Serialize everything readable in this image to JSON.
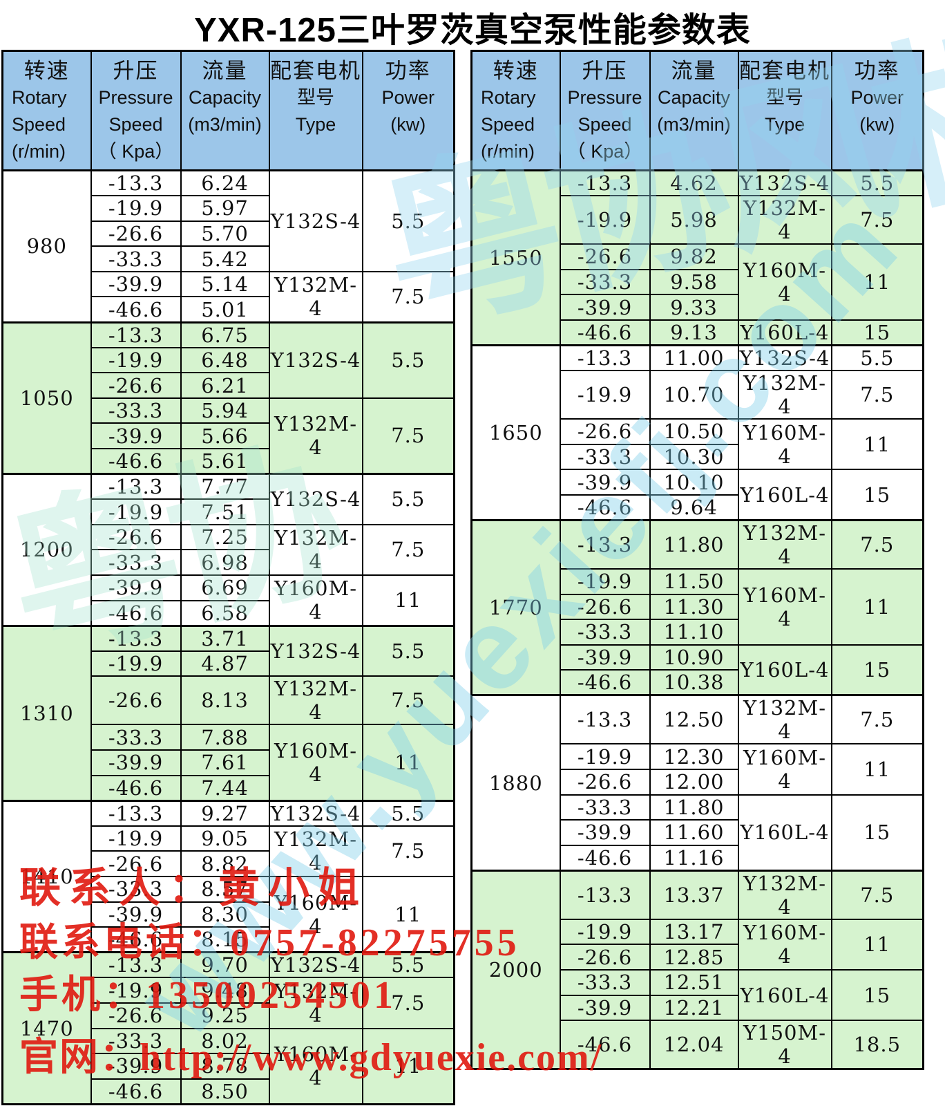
{
  "title": "YXR-125三叶罗茨真空泵性能参数表",
  "colors": {
    "header_blue": "#9cc6e9",
    "row_green": "#d6f3cf",
    "row_white": "#ffffff",
    "contact_red": "#e0180e",
    "watermark_cyan": "#7accE8",
    "border_black": "#000000"
  },
  "columns": [
    {
      "key": "speed",
      "lines": [
        "转速",
        "Rotary",
        "Speed",
        "(r/min)"
      ]
    },
    {
      "key": "pressure",
      "lines": [
        "升压",
        "Pressure",
        "Speed",
        "（ Kpa）"
      ]
    },
    {
      "key": "capacity",
      "lines": [
        "流量",
        "Capacity",
        "(m3/min)"
      ]
    },
    {
      "key": "motor",
      "lines": [
        "配套电机",
        "型号",
        "Type"
      ]
    },
    {
      "key": "power",
      "lines": [
        "功率",
        "Power",
        "(kw)"
      ]
    }
  ],
  "tables": [
    {
      "side": "left",
      "groups": [
        {
          "speed": "980",
          "shade": "white",
          "rows": [
            {
              "p": "-13.3",
              "c": "6.24"
            },
            {
              "p": "-19.9",
              "c": "5.97"
            },
            {
              "p": "-26.6",
              "c": "5.70"
            },
            {
              "p": "-33.3",
              "c": "5.42"
            },
            {
              "p": "-39.9",
              "c": "5.14"
            },
            {
              "p": "-46.6",
              "c": "5.01"
            }
          ],
          "motors": [
            {
              "type": "Y132S-4",
              "power": "5.5",
              "span": 4
            },
            {
              "type": "Y132M-4",
              "power": "7.5",
              "span": 2
            }
          ]
        },
        {
          "speed": "1050",
          "shade": "green",
          "rows": [
            {
              "p": "-13.3",
              "c": "6.75"
            },
            {
              "p": "-19.9",
              "c": "6.48"
            },
            {
              "p": "-26.6",
              "c": "6.21"
            },
            {
              "p": "-33.3",
              "c": "5.94"
            },
            {
              "p": "-39.9",
              "c": "5.66"
            },
            {
              "p": "-46.6",
              "c": "5.61"
            }
          ],
          "motors": [
            {
              "type": "Y132S-4",
              "power": "5.5",
              "span": 3
            },
            {
              "type": "Y132M-4",
              "power": "7.5",
              "span": 3
            }
          ]
        },
        {
          "speed": "1200",
          "shade": "white",
          "rows": [
            {
              "p": "-13.3",
              "c": "7.77"
            },
            {
              "p": "-19.9",
              "c": "7.51"
            },
            {
              "p": "-26.6",
              "c": "7.25"
            },
            {
              "p": "-33.3",
              "c": "6.98"
            },
            {
              "p": "-39.9",
              "c": "6.69"
            },
            {
              "p": "-46.6",
              "c": "6.58"
            }
          ],
          "motors": [
            {
              "type": "Y132S-4",
              "power": "5.5",
              "span": 2
            },
            {
              "type": "Y132M-4",
              "power": "7.5",
              "span": 2
            },
            {
              "type": "Y160M-4",
              "power": "11",
              "span": 2
            }
          ]
        },
        {
          "speed": "1310",
          "shade": "green",
          "rows": [
            {
              "p": "-13.3",
              "c": "3.71"
            },
            {
              "p": "-19.9",
              "c": "4.87"
            },
            {
              "p": "-26.6",
              "c": "8.13"
            },
            {
              "p": "-33.3",
              "c": "7.88"
            },
            {
              "p": "-39.9",
              "c": "7.61"
            },
            {
              "p": "-46.6",
              "c": "7.44"
            }
          ],
          "motors": [
            {
              "type": "Y132S-4",
              "power": "5.5",
              "span": 2
            },
            {
              "type": "Y132M-4",
              "power": "7.5",
              "span": 1
            },
            {
              "type": "Y160M-4",
              "power": "11",
              "span": 3
            }
          ]
        },
        {
          "speed": "1410",
          "shade": "white",
          "rows": [
            {
              "p": "-13.3",
              "c": "9.27"
            },
            {
              "p": "-19.9",
              "c": "9.05"
            },
            {
              "p": "-26.6",
              "c": "8.82"
            },
            {
              "p": "-33.3",
              "c": "8.57"
            },
            {
              "p": "-39.9",
              "c": "8.30"
            },
            {
              "p": "-46.6",
              "c": "8.15"
            }
          ],
          "motors": [
            {
              "type": "Y132S-4",
              "power": "5.5",
              "span": 1
            },
            {
              "type": "Y132M-4",
              "power": "7.5",
              "span": 2
            },
            {
              "type": "Y160M-4",
              "power": "11",
              "span": 3
            }
          ]
        },
        {
          "speed": "1470",
          "shade": "green",
          "rows": [
            {
              "p": "-13.3",
              "c": "9.70"
            },
            {
              "p": "-19.9",
              "c": "9.48"
            },
            {
              "p": "-26.6",
              "c": "9.25"
            },
            {
              "p": "-33.3",
              "c": "8.02"
            },
            {
              "p": "-39.9",
              "c": "8.78"
            },
            {
              "p": "-46.6",
              "c": "8.50"
            }
          ],
          "motors": [
            {
              "type": "Y132S-4",
              "power": "5.5",
              "span": 1
            },
            {
              "type": "Y132M-4",
              "power": "7.5",
              "span": 2
            },
            {
              "type": "Y160M-4",
              "power": "11",
              "span": 3
            }
          ]
        }
      ]
    },
    {
      "side": "right",
      "groups": [
        {
          "speed": "1550",
          "shade": "green",
          "rows": [
            {
              "p": "-13.3",
              "c": "4.62"
            },
            {
              "p": "-19.9",
              "c": "5.98"
            },
            {
              "p": "-26.6",
              "c": "9.82"
            },
            {
              "p": "-33.3",
              "c": "9.58"
            },
            {
              "p": "-39.9",
              "c": "9.33"
            },
            {
              "p": "-46.6",
              "c": "9.13"
            }
          ],
          "motors": [
            {
              "type": "Y132S-4",
              "power": "5.5",
              "span": 1
            },
            {
              "type": "Y132M-4",
              "power": "7.5",
              "span": 1
            },
            {
              "type": "Y160M-4",
              "power": "11",
              "span": 3
            },
            {
              "type": "Y160L-4",
              "power": "15",
              "span": 1
            }
          ]
        },
        {
          "speed": "1650",
          "shade": "white",
          "rows": [
            {
              "p": "-13.3",
              "c": "11.00"
            },
            {
              "p": "-19.9",
              "c": "10.70"
            },
            {
              "p": "-26.6",
              "c": "10.50"
            },
            {
              "p": "-33.3",
              "c": "10.30"
            },
            {
              "p": "-39.9",
              "c": "10.10"
            },
            {
              "p": "-46.6",
              "c": "9.64"
            }
          ],
          "motors": [
            {
              "type": "Y132S-4",
              "power": "5.5",
              "span": 1
            },
            {
              "type": "Y132M-4",
              "power": "7.5",
              "span": 1
            },
            {
              "type": "Y160M-4",
              "power": "11",
              "span": 2
            },
            {
              "type": "Y160L-4",
              "power": "15",
              "span": 2
            }
          ]
        },
        {
          "speed": "1770",
          "shade": "green",
          "rows": [
            {
              "p": "-13.3",
              "c": "11.80"
            },
            {
              "p": "-19.9",
              "c": "11.50"
            },
            {
              "p": "-26.6",
              "c": "11.30"
            },
            {
              "p": "-33.3",
              "c": "11.10"
            },
            {
              "p": "-39.9",
              "c": "10.90"
            },
            {
              "p": "-46.6",
              "c": "10.38"
            }
          ],
          "motors": [
            {
              "type": "Y132M-4",
              "power": "7.5",
              "span": 1
            },
            {
              "type": "Y160M-4",
              "power": "11",
              "span": 3
            },
            {
              "type": "Y160L-4",
              "power": "15",
              "span": 2
            }
          ]
        },
        {
          "speed": "1880",
          "shade": "white",
          "rows": [
            {
              "p": "-13.3",
              "c": "12.50"
            },
            {
              "p": "-19.9",
              "c": "12.30"
            },
            {
              "p": "-26.6",
              "c": "12.00"
            },
            {
              "p": "-33.3",
              "c": "11.80"
            },
            {
              "p": "-39.9",
              "c": "11.60"
            },
            {
              "p": "-46.6",
              "c": "11.16"
            }
          ],
          "motors": [
            {
              "type": "Y132M-4",
              "power": "7.5",
              "span": 1
            },
            {
              "type": "Y160M-4",
              "power": "11",
              "span": 2
            },
            {
              "type": "Y160L-4",
              "power": "15",
              "span": 3
            }
          ]
        },
        {
          "speed": "2000",
          "shade": "green",
          "rows": [
            {
              "p": "-13.3",
              "c": "13.37"
            },
            {
              "p": "-19.9",
              "c": "13.17"
            },
            {
              "p": "-26.6",
              "c": "12.85"
            },
            {
              "p": "-33.3",
              "c": "12.51"
            },
            {
              "p": "-39.9",
              "c": "12.21"
            },
            {
              "p": "-46.6",
              "c": "12.04"
            }
          ],
          "motors": [
            {
              "type": "Y132M-4",
              "power": "7.5",
              "span": 1
            },
            {
              "type": "Y160M-4",
              "power": "11",
              "span": 2
            },
            {
              "type": "Y160L-4",
              "power": "15",
              "span": 2
            },
            {
              "type": "Y150M-4",
              "power": "18.5",
              "span": 1
            }
          ]
        }
      ]
    }
  ],
  "overlays": {
    "contact": [
      "联系人：黄小姐",
      "联系电话：0757-82275755",
      "手机：13500254501",
      "官网：http://www.gdyuexie.com/"
    ]
  },
  "watermarks": {
    "url_text": "www.yuexiefj.com",
    "logo_text": "粤协风机",
    "logo_text_short": "粤协"
  }
}
